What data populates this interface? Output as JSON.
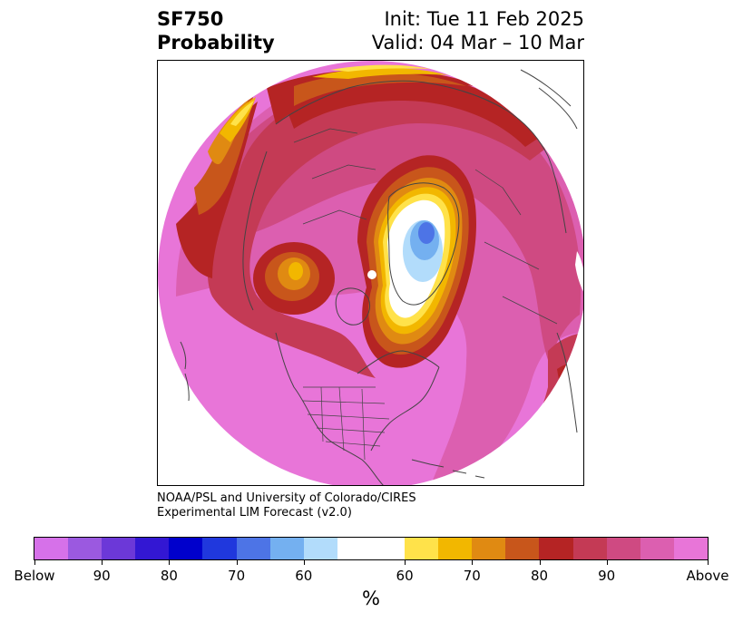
{
  "title": {
    "line1": "SF750",
    "line2": "Probability",
    "init": "Init: Tue 11 Feb 2025",
    "valid": "Valid: 04 Mar – 10 Mar"
  },
  "credit": {
    "line1": "NOAA/PSL and University of Colorado/CIRES",
    "line2": "Experimental LIM Forecast (v2.0)"
  },
  "colorbar": {
    "unit": "%",
    "segments": [
      {
        "color": "#d671e9"
      },
      {
        "color": "#9b59e0"
      },
      {
        "color": "#6c38d8"
      },
      {
        "color": "#3317d3"
      },
      {
        "color": "#0000cc"
      },
      {
        "color": "#2038dd"
      },
      {
        "color": "#4d74e6"
      },
      {
        "color": "#74b0f0"
      },
      {
        "color": "#b2dcfb"
      },
      {
        "color": "#ffffff",
        "wide": true
      },
      {
        "color": "#ffe24a"
      },
      {
        "color": "#f2b700"
      },
      {
        "color": "#e08a12"
      },
      {
        "color": "#c8561b"
      },
      {
        "color": "#b52424"
      },
      {
        "color": "#c43a55"
      },
      {
        "color": "#cf4a82"
      },
      {
        "color": "#dc5fb0"
      },
      {
        "color": "#e875d8"
      }
    ],
    "ticks": [
      "Below",
      "90",
      "80",
      "70",
      "60",
      "60",
      "70",
      "80",
      "90",
      "Above"
    ]
  },
  "map": {
    "colors": {
      "above": "#e875d8",
      "a90": "#dc5fb0",
      "a85": "#cf4a82",
      "a80": "#c43a55",
      "a75": "#b52424",
      "a70": "#c8561b",
      "a65": "#e08a12",
      "a60": "#f2b700",
      "a55": "#ffe24a",
      "neutral": "#ffffff",
      "b55": "#b2dcfb",
      "b60": "#74b0f0",
      "b65": "#4d74e6",
      "coast": "#444444"
    }
  }
}
